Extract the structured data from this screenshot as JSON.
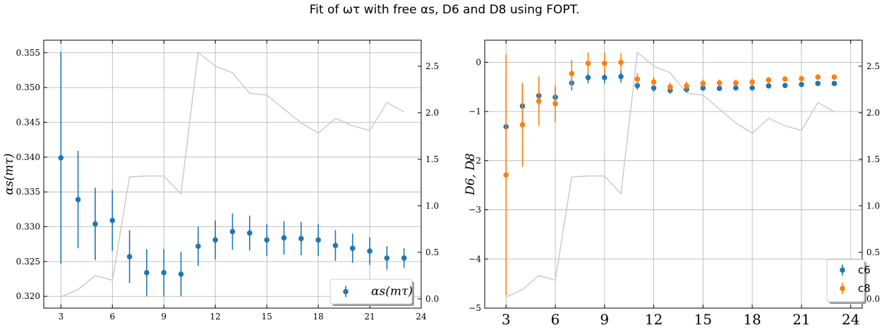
{
  "title": "Fit of ωτ with free αs, D6 and D8 using FOPT.",
  "chart_data": [
    {
      "type": "scatter",
      "name": "left",
      "x": [
        3,
        4,
        5,
        6,
        7,
        8,
        9,
        10,
        11,
        12,
        13,
        14,
        15,
        16,
        17,
        18,
        19,
        20,
        21,
        22,
        23
      ],
      "xlim": [
        2,
        24
      ],
      "xticks": [
        3,
        6,
        9,
        12,
        15,
        18,
        21,
        24
      ],
      "ylabel": "αs(mτ)",
      "ylim": [
        0.3183,
        0.3568
      ],
      "yticks": [
        0.32,
        0.325,
        0.33,
        0.335,
        0.34,
        0.345,
        0.35,
        0.355
      ],
      "ytick_labels": [
        "0.320",
        "0.325",
        "0.330",
        "0.335",
        "0.340",
        "0.345",
        "0.350",
        "0.355"
      ],
      "series": [
        {
          "name": "αs(mτ)",
          "color": "#1f77b4",
          "y": [
            0.3399,
            0.3339,
            0.3304,
            0.3309,
            0.3257,
            0.3234,
            0.3234,
            0.3232,
            0.3272,
            0.3281,
            0.3293,
            0.3291,
            0.3281,
            0.3284,
            0.3283,
            0.3281,
            0.3273,
            0.3269,
            0.3265,
            0.3255,
            0.3255
          ],
          "err": [
            0.0152,
            0.007,
            0.0052,
            0.0044,
            0.0038,
            0.0034,
            0.0034,
            0.0032,
            0.0028,
            0.0028,
            0.0026,
            0.0025,
            0.0023,
            0.0024,
            0.0024,
            0.0023,
            0.0022,
            0.0021,
            0.002,
            0.0017,
            0.0014
          ]
        }
      ],
      "secondary": {
        "color": "#c8c8c8",
        "ylim": [
          -0.1,
          2.78
        ],
        "yticks": [
          0.0,
          0.5,
          1.0,
          1.5,
          2.0,
          2.5
        ],
        "ytick_labels": [
          "0.0",
          "0.5",
          "1.0",
          "1.5",
          "2.0",
          "2.5"
        ],
        "y": [
          0.02,
          0.1,
          0.25,
          0.2,
          1.31,
          1.32,
          1.32,
          1.13,
          2.65,
          2.5,
          2.43,
          2.21,
          2.19,
          2.04,
          1.89,
          1.78,
          1.94,
          1.86,
          1.81,
          2.11,
          2.01
        ]
      },
      "legend": "lower-right",
      "grid": true
    },
    {
      "type": "scatter",
      "name": "right",
      "x": [
        3,
        4,
        5,
        6,
        7,
        8,
        9,
        10,
        11,
        12,
        13,
        14,
        15,
        16,
        17,
        18,
        19,
        20,
        21,
        22,
        23
      ],
      "xlim": [
        1.7,
        24.7
      ],
      "xticks": [
        3,
        6,
        9,
        12,
        15,
        18,
        21,
        24
      ],
      "ylabel": "D6, D8",
      "ylim": [
        -5.0,
        0.45
      ],
      "yticks": [
        -5,
        -4,
        -3,
        -2,
        -1,
        0
      ],
      "ytick_labels": [
        "−5",
        "−4",
        "−3",
        "−2",
        "−1",
        "0"
      ],
      "series": [
        {
          "name": "c6",
          "color": "#1f77b4",
          "y": [
            -1.31,
            -0.89,
            -0.68,
            -0.71,
            -0.42,
            -0.31,
            -0.31,
            -0.29,
            -0.47,
            -0.52,
            -0.57,
            -0.55,
            -0.52,
            -0.53,
            -0.52,
            -0.52,
            -0.48,
            -0.47,
            -0.45,
            -0.43,
            -0.43
          ],
          "err": [
            1.0,
            0.45,
            0.25,
            0.2,
            0.15,
            0.12,
            0.12,
            0.12,
            0.09,
            0.08,
            0.07,
            0.06,
            0.06,
            0.05,
            0.05,
            0.05,
            0.04,
            0.04,
            0.04,
            0.04,
            0.04
          ]
        },
        {
          "name": "c8",
          "color": "#ff7f0e",
          "y": [
            -2.29,
            -1.27,
            -0.79,
            -0.84,
            -0.23,
            -0.02,
            -0.02,
            0.0,
            -0.34,
            -0.4,
            -0.5,
            -0.48,
            -0.43,
            -0.42,
            -0.42,
            -0.4,
            -0.36,
            -0.34,
            -0.33,
            -0.3,
            -0.3
          ],
          "err": [
            2.45,
            0.85,
            0.5,
            0.38,
            0.28,
            0.22,
            0.22,
            0.18,
            0.12,
            0.1,
            0.09,
            0.09,
            0.08,
            0.07,
            0.07,
            0.07,
            0.06,
            0.05,
            0.05,
            0.05,
            0.05
          ]
        }
      ],
      "secondary": {
        "color": "#c8c8c8",
        "ylim": [
          -0.1,
          2.78
        ],
        "yticks": [
          0.0,
          0.5,
          1.0,
          1.5,
          2.0,
          2.5
        ],
        "ytick_labels": [
          "0.0",
          "0.5",
          "1.0",
          "1.5",
          "2.0",
          "2.5"
        ],
        "y": [
          0.02,
          0.1,
          0.25,
          0.2,
          1.31,
          1.32,
          1.32,
          1.13,
          2.65,
          2.5,
          2.43,
          2.21,
          2.19,
          2.04,
          1.89,
          1.78,
          1.94,
          1.86,
          1.81,
          2.11,
          2.01
        ]
      },
      "legend": "lower-right",
      "grid": true
    }
  ]
}
